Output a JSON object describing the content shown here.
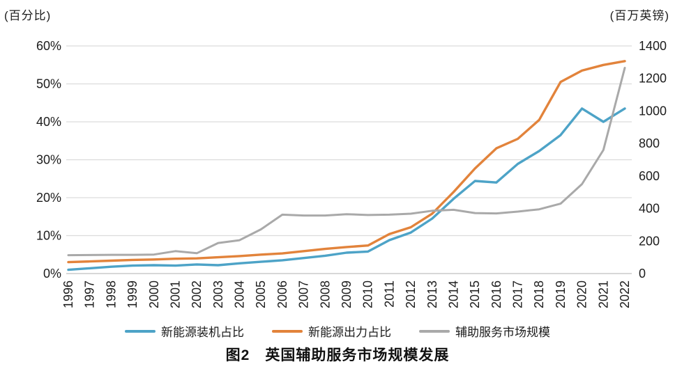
{
  "chart_data": {
    "type": "line",
    "title": "图2　英国辅助服务市场规模发展",
    "grid": true,
    "legend_position": "bottom",
    "x": [
      1996,
      1997,
      1998,
      1999,
      2000,
      2001,
      2002,
      2003,
      2004,
      2005,
      2006,
      2007,
      2008,
      2009,
      2010,
      2011,
      2012,
      2013,
      2014,
      2015,
      2016,
      2017,
      2018,
      2019,
      2020,
      2021,
      2022
    ],
    "left_axis": {
      "unit": "(百分比)",
      "min": 0,
      "max": 60,
      "tick_labels": [
        "0%",
        "10%",
        "20%",
        "30%",
        "40%",
        "50%",
        "60%"
      ]
    },
    "right_axis": {
      "unit": "(百万英镑)",
      "min": 0,
      "max": 1400,
      "tick_labels": [
        "0",
        "200",
        "400",
        "600",
        "800",
        "1000",
        "1200",
        "1400"
      ]
    },
    "series": [
      {
        "name": "新能源装机占比",
        "axis": "left",
        "color": "#4da3c7",
        "width": 3.4,
        "values": [
          1.0,
          1.4,
          1.8,
          2.1,
          2.2,
          2.1,
          2.4,
          2.2,
          2.7,
          3.1,
          3.5,
          4.1,
          4.7,
          5.5,
          5.8,
          8.8,
          10.8,
          14.5,
          19.7,
          24.4,
          24.0,
          28.9,
          32.3,
          36.5,
          43.5,
          40.0,
          43.5
        ]
      },
      {
        "name": "新能源出力占比",
        "axis": "left",
        "color": "#e2833b",
        "width": 3.4,
        "values": [
          3.0,
          3.2,
          3.4,
          3.6,
          3.7,
          3.9,
          4.0,
          4.3,
          4.6,
          5.0,
          5.3,
          5.9,
          6.5,
          7.0,
          7.4,
          10.4,
          12.2,
          15.8,
          21.5,
          27.7,
          33.0,
          35.5,
          40.5,
          50.5,
          53.5,
          55.0,
          56.0
        ]
      },
      {
        "name": "辅助服务市场规模",
        "axis": "right",
        "color": "#a9a9a9",
        "width": 3.0,
        "values": [
          113,
          114,
          115,
          115,
          117,
          138,
          125,
          188,
          205,
          272,
          362,
          357,
          357,
          365,
          360,
          362,
          368,
          386,
          392,
          372,
          370,
          381,
          395,
          430,
          550,
          760,
          1265
        ]
      }
    ]
  },
  "legend": {
    "item1": "新能源装机占比",
    "item2": "新能源出力占比",
    "item3": "辅助服务市场规模"
  }
}
